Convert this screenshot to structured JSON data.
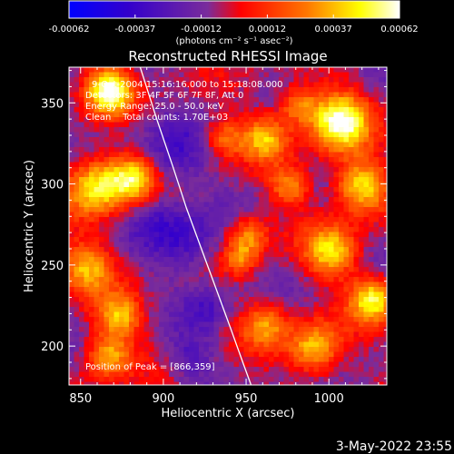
{
  "chart_data": {
    "type": "heatmap",
    "title": "Reconstructed RHESSI Image",
    "xlabel": "Heliocentric X (arcsec)",
    "ylabel": "Heliocentric Y (arcsec)",
    "xlim": [
      843,
      1035
    ],
    "ylim": [
      176,
      372
    ],
    "xticks": [
      850,
      900,
      950,
      1000
    ],
    "yticks": [
      200,
      250,
      300,
      350
    ],
    "colorbar": {
      "range": [
        -0.00062,
        0.00062
      ],
      "tick_labels": [
        "-0.00062",
        "-0.00037",
        "-0.00012",
        "0.00012",
        "0.00037",
        "0.00062"
      ],
      "unit_label": "(photons cm⁻² s⁻¹ asec⁻²)",
      "colormap": [
        "#0000ff",
        "#3300cc",
        "#7a2c9b",
        "#ff0000",
        "#ff7700",
        "#ffff00",
        "#ffffff"
      ]
    },
    "annotations": {
      "time_range": "9-Oct-2004 15:16:16.000 to 15:18:08.000",
      "detectors": "Detectors: 3F 4F 5F 6F 7F 8F, Att 0",
      "energy_range": "Energy Range: 25.0 - 50.0 keV",
      "clean_line": "Clean    Total counts: 1.70E+03",
      "peak": "Position of Peak = [866,359]"
    },
    "limb": {
      "color": "#ffffff",
      "points": [
        [
          886,
          372
        ],
        [
          896,
          340
        ],
        [
          906,
          310
        ],
        [
          914,
          285
        ],
        [
          923,
          260
        ],
        [
          932,
          235
        ],
        [
          941,
          210
        ],
        [
          948,
          190
        ],
        [
          953,
          176
        ]
      ]
    },
    "peak_position": [
      866,
      359
    ],
    "grid": false
  },
  "footer": {
    "timestamp": "3-May-2022 23:55"
  }
}
